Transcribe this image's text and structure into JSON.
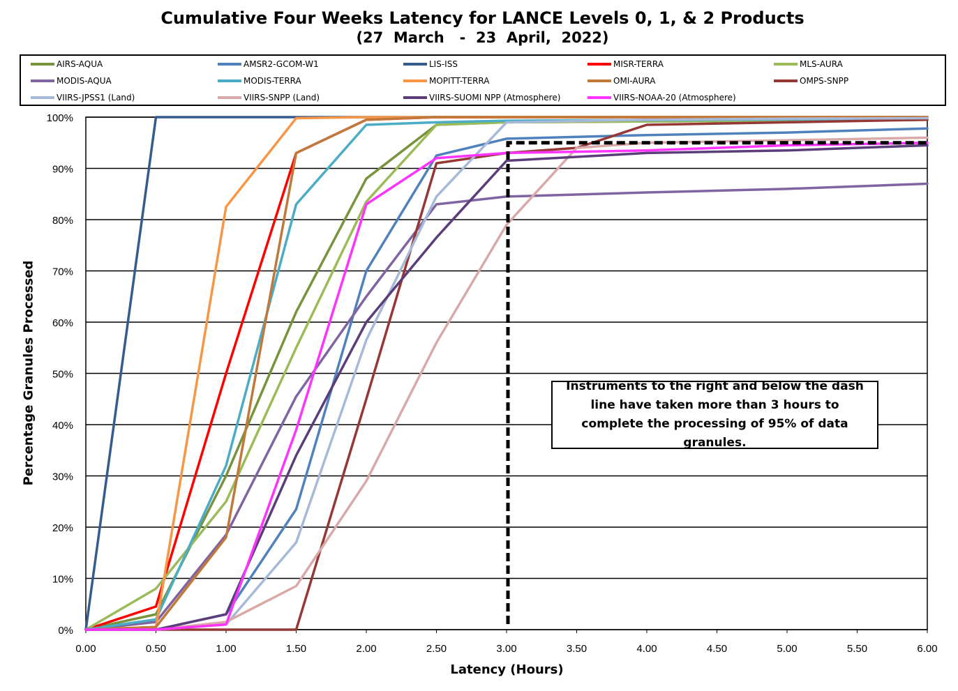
{
  "chart_data": {
    "type": "line",
    "title": "Cumulative Four Weeks Latency  for LANCE Levels 0, 1, & 2 Products",
    "subtitle": "(27  March   -  23  April,  2022)",
    "xlabel": "Latency (Hours)",
    "ylabel": "Percentage Granules Processed",
    "xlim": [
      0,
      6
    ],
    "ylim": [
      0,
      100
    ],
    "x_ticks": [
      "0.00",
      "0.50",
      "1.00",
      "1.50",
      "2.00",
      "2.50",
      "3.00",
      "3.50",
      "4.00",
      "4.50",
      "5.00",
      "5.50",
      "6.00"
    ],
    "y_ticks": [
      "0%",
      "10%",
      "20%",
      "30%",
      "40%",
      "50%",
      "60%",
      "70%",
      "80%",
      "90%",
      "100%"
    ],
    "grid": "horizontal",
    "legend_position": "top",
    "series": [
      {
        "name": "AIRS-AQUA",
        "color": "#77933C",
        "x": [
          0,
          0.5,
          1,
          1.5,
          2,
          2.5,
          3,
          6
        ],
        "y": [
          0,
          3,
          30,
          62,
          88,
          98.5,
          99,
          99.5
        ]
      },
      {
        "name": "AMSR2-GCOM-W1",
        "color": "#4F81BD",
        "x": [
          0,
          0.5,
          1,
          1.5,
          2,
          2.5,
          3,
          4,
          5,
          6
        ],
        "y": [
          0,
          0,
          3,
          23.5,
          70,
          92.5,
          95.8,
          96.5,
          97,
          97.8
        ]
      },
      {
        "name": "LIS-ISS",
        "color": "#355C8C",
        "x": [
          0,
          0.5,
          1,
          6
        ],
        "y": [
          0,
          100,
          100,
          100
        ]
      },
      {
        "name": "MISR-TERRA",
        "color": "#FF0000",
        "x": [
          0,
          0.5,
          1,
          1.5,
          2,
          2.5,
          6
        ],
        "y": [
          0,
          4.5,
          50,
          93,
          99.5,
          100,
          100
        ]
      },
      {
        "name": "MLS-AURA",
        "color": "#9BBB59",
        "x": [
          0,
          0.5,
          1,
          1.5,
          2,
          2.5,
          3,
          6
        ],
        "y": [
          0,
          8,
          25,
          55,
          83.5,
          98.5,
          99,
          99.5
        ]
      },
      {
        "name": "MODIS-AQUA",
        "color": "#8064A2",
        "x": [
          0,
          0.5,
          1,
          1.5,
          2,
          2.5,
          3,
          4,
          5,
          6
        ],
        "y": [
          0,
          1.5,
          18.5,
          45.5,
          65,
          83,
          84.5,
          85.3,
          86,
          87
        ]
      },
      {
        "name": "MODIS-TERRA",
        "color": "#4BACC6",
        "x": [
          0,
          0.5,
          1,
          1.5,
          2,
          2.5,
          3,
          6
        ],
        "y": [
          0,
          2,
          32,
          83,
          98.5,
          99,
          99.3,
          99.7
        ]
      },
      {
        "name": "MOPITT-TERRA",
        "color": "#F79646",
        "x": [
          0,
          0.5,
          1,
          1.5,
          2,
          6
        ],
        "y": [
          0,
          0.5,
          82.5,
          99.8,
          100,
          100
        ]
      },
      {
        "name": "OMI-AURA",
        "color": "#C0793A",
        "x": [
          0,
          0.5,
          1,
          1.5,
          2,
          2.5,
          6
        ],
        "y": [
          0,
          0.5,
          18,
          93,
          99.5,
          100,
          100
        ]
      },
      {
        "name": "OMPS-SNPP",
        "color": "#953735",
        "x": [
          0,
          0.5,
          1,
          1.5,
          2,
          2.5,
          3,
          3.5,
          4,
          5,
          6
        ],
        "y": [
          0,
          0,
          0,
          0,
          45,
          91,
          93,
          94,
          98.5,
          99,
          99.5
        ]
      },
      {
        "name": "VIIRS-JPSS1 (Land)",
        "color": "#A6B9D9",
        "x": [
          0,
          0.5,
          1,
          1.5,
          2,
          2.5,
          3,
          4,
          5,
          6
        ],
        "y": [
          0,
          0,
          1,
          17,
          56.5,
          84.5,
          99,
          99.5,
          99.7,
          99.8
        ]
      },
      {
        "name": "VIIRS-SNPP (Land)",
        "color": "#D9A9A9",
        "x": [
          0,
          0.5,
          1,
          1.5,
          2,
          2.5,
          3,
          3.5,
          4,
          5,
          6
        ],
        "y": [
          0,
          0,
          1.5,
          8.5,
          29,
          56,
          79,
          94,
          95,
          95.5,
          96
        ]
      },
      {
        "name": "VIIRS-SUOMI NPP (Atmosphere)",
        "color": "#5B3D7A",
        "x": [
          0,
          0.5,
          1,
          1.5,
          2,
          2.5,
          3,
          4,
          5,
          6
        ],
        "y": [
          0,
          0,
          3,
          34,
          60,
          76.5,
          91.5,
          93,
          93.5,
          94.5
        ]
      },
      {
        "name": "VIIRS-NOAA-20 (Atmosphere)",
        "color": "#FF33FF",
        "x": [
          0,
          0.5,
          1,
          1.5,
          2,
          2.5,
          3,
          4,
          5,
          6
        ],
        "y": [
          0,
          0,
          1,
          39,
          83,
          92,
          93,
          93.5,
          94.5,
          95
        ]
      }
    ],
    "threshold": {
      "x": 3.0,
      "y": 95,
      "style": "dashed",
      "color": "#000000"
    },
    "annotation": "Instruments to the right and below the dash line have taken more than 3 hours to complete the processing of 95% of data granules."
  }
}
